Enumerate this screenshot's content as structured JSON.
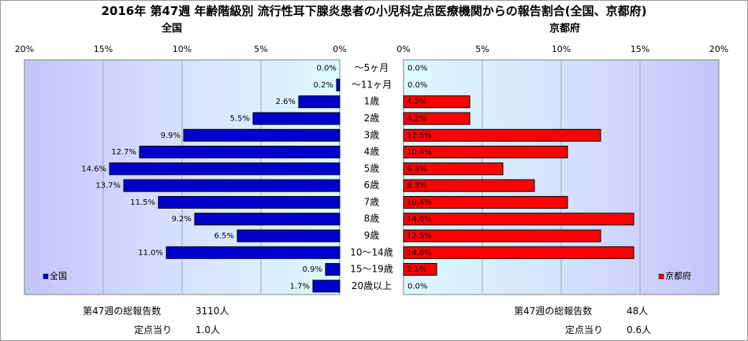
{
  "title": "2016年 第47週 年齢階級別 流行性耳下腺炎患者の小児科定点医療機関からの報告割合(全国、京都府)",
  "chart_data": {
    "type": "bar",
    "orientation": "horizontal",
    "categories": [
      "〜5ヶ月",
      "〜11ヶ月",
      "1歳",
      "2歳",
      "3歳",
      "4歳",
      "5歳",
      "6歳",
      "7歳",
      "8歳",
      "9歳",
      "10〜14歳",
      "15〜19歳",
      "20歳以上"
    ],
    "x_tick_labels": [
      "0%",
      "5%",
      "10%",
      "15%",
      "20%"
    ],
    "xlim": [
      0,
      20
    ],
    "grid": true,
    "panels": [
      {
        "title": "全国",
        "legend": "全国",
        "legend_position": "bottom-left",
        "color": "#0000cc",
        "direction": "left",
        "series": [
          {
            "name": "全国",
            "values": [
              0.0,
              0.2,
              2.6,
              5.5,
              9.9,
              12.7,
              14.6,
              13.7,
              11.5,
              9.2,
              6.5,
              11.0,
              0.9,
              1.7
            ]
          }
        ],
        "value_labels": [
          "0.0%",
          "0.2%",
          "2.6%",
          "5.5%",
          "9.9%",
          "12.7%",
          "14.6%",
          "13.7%",
          "11.5%",
          "9.2%",
          "6.5%",
          "11.0%",
          "0.9%",
          "1.7%"
        ]
      },
      {
        "title": "京都府",
        "legend": "京都府",
        "legend_position": "bottom-right",
        "color": "#ff0000",
        "direction": "right",
        "series": [
          {
            "name": "京都府",
            "values": [
              0.0,
              0.0,
              4.2,
              4.2,
              12.5,
              10.4,
              6.3,
              8.3,
              10.4,
              14.6,
              12.5,
              14.6,
              2.1,
              0.0
            ]
          }
        ],
        "value_labels": [
          "0.0%",
          "0.0%",
          "4.2%",
          "4.2%",
          "12.5%",
          "10.4%",
          "6.3%",
          "8.3%",
          "10.4%",
          "14.6%",
          "12.5%",
          "14.6%",
          "2.1%",
          "0.0%"
        ]
      }
    ]
  },
  "stats": {
    "national": {
      "total_label": "第47週の総報告数",
      "total_value": "3110人",
      "per_site_label": "定点当り",
      "per_site_value": "1.0人"
    },
    "kyoto": {
      "total_label": "第47週の総報告数",
      "total_value": "48人",
      "per_site_label": "定点当り",
      "per_site_value": "0.6人"
    }
  }
}
